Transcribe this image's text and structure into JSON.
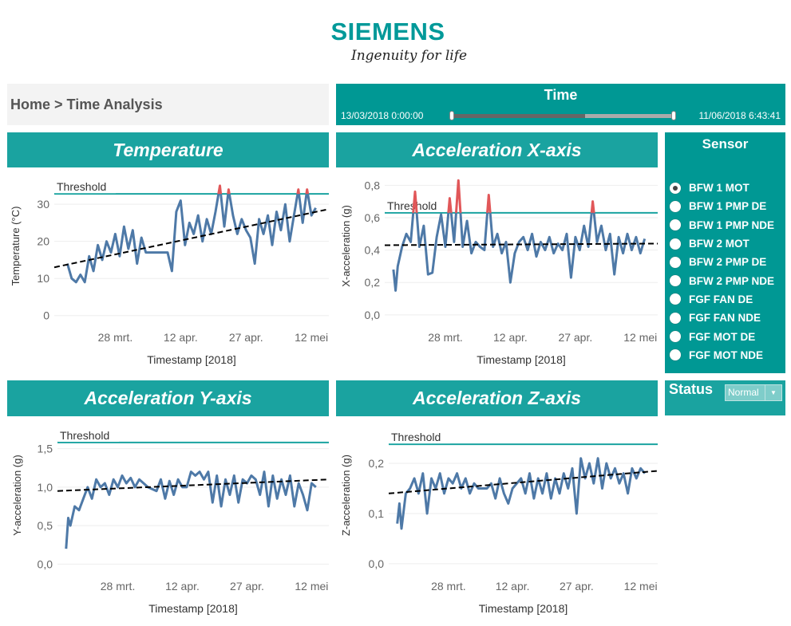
{
  "logo": {
    "brand": "SIEMENS",
    "tagline": "Ingenuity for life"
  },
  "breadcrumb": "Home > Time Analysis",
  "time_filter": {
    "title": "Time",
    "start": "13/03/2018 0:00:00",
    "end": "11/06/2018 6:43:41",
    "selected_fraction_start": 0.0,
    "selected_fraction_end": 0.6
  },
  "sensor": {
    "title": "Sensor",
    "options": [
      "BFW 1 MOT",
      "BFW 1 PMP DE",
      "BFW 1 PMP NDE",
      "BFW 2 MOT",
      "BFW 2 PMP DE",
      "BFW 2 PMP NDE",
      "FGF FAN DE",
      "FGF FAN NDE",
      "FGF MOT DE",
      "FGF MOT NDE"
    ],
    "selected": "BFW 1 MOT"
  },
  "status": {
    "label": "Status",
    "value": "Normal"
  },
  "colors": {
    "header": "#1aa3a0",
    "panel": "#009894",
    "line": "#4e79a7",
    "above_threshold": "#e15759",
    "threshold": "#1aa3a0",
    "trend": "#000000"
  },
  "chart_data": [
    {
      "type": "line",
      "title": "Temperature",
      "xlabel": "Timestamp [2018]",
      "ylabel": "Temperature (°C)",
      "threshold_label": "Threshold",
      "threshold": 32.8,
      "xlim": [
        "2018-03-14",
        "2018-05-16"
      ],
      "ylim": [
        -2,
        39.5
      ],
      "yticks": [
        {
          "v": 0,
          "l": "0"
        },
        {
          "v": 10,
          "l": "10"
        },
        {
          "v": 20,
          "l": "20"
        },
        {
          "v": 30,
          "l": "30"
        }
      ],
      "xticks": [
        {
          "d": "2018-03-28",
          "l": "28 mrt."
        },
        {
          "d": "2018-04-12",
          "l": "12 apr."
        },
        {
          "d": "2018-04-27",
          "l": "27 apr."
        },
        {
          "d": "2018-05-12",
          "l": "12 mei"
        }
      ],
      "trend": [
        [
          "2018-03-14",
          13
        ],
        [
          "2018-05-16",
          28.7
        ]
      ],
      "series": [
        [
          "2018-03-17",
          14
        ],
        [
          "2018-03-18",
          10
        ],
        [
          "2018-03-19",
          9
        ],
        [
          "2018-03-20",
          11
        ],
        [
          "2018-03-21",
          9
        ],
        [
          "2018-03-22",
          16
        ],
        [
          "2018-03-23",
          12
        ],
        [
          "2018-03-24",
          19
        ],
        [
          "2018-03-25",
          15
        ],
        [
          "2018-03-26",
          20
        ],
        [
          "2018-03-27",
          17
        ],
        [
          "2018-03-28",
          22
        ],
        [
          "2018-03-29",
          16
        ],
        [
          "2018-03-30",
          24
        ],
        [
          "2018-03-31",
          18
        ],
        [
          "2018-04-01",
          23
        ],
        [
          "2018-04-02",
          14
        ],
        [
          "2018-04-03",
          21
        ],
        [
          "2018-04-04",
          17
        ],
        [
          "2018-04-05",
          17
        ],
        [
          "2018-04-09",
          17
        ],
        [
          "2018-04-10",
          12
        ],
        [
          "2018-04-11",
          28
        ],
        [
          "2018-04-12",
          31
        ],
        [
          "2018-04-13",
          19
        ],
        [
          "2018-04-14",
          25
        ],
        [
          "2018-04-15",
          22
        ],
        [
          "2018-04-16",
          27
        ],
        [
          "2018-04-17",
          20
        ],
        [
          "2018-04-18",
          26
        ],
        [
          "2018-04-19",
          22
        ],
        [
          "2018-04-20",
          28
        ],
        [
          "2018-04-21",
          35
        ],
        [
          "2018-04-22",
          24
        ],
        [
          "2018-04-23",
          34
        ],
        [
          "2018-04-24",
          27
        ],
        [
          "2018-04-25",
          22
        ],
        [
          "2018-04-26",
          26
        ],
        [
          "2018-04-27",
          23
        ],
        [
          "2018-04-28",
          21
        ],
        [
          "2018-04-29",
          14
        ],
        [
          "2018-04-30",
          26
        ],
        [
          "2018-05-01",
          22
        ],
        [
          "2018-05-02",
          27
        ],
        [
          "2018-05-03",
          19
        ],
        [
          "2018-05-04",
          28
        ],
        [
          "2018-05-05",
          23
        ],
        [
          "2018-05-06",
          30
        ],
        [
          "2018-05-07",
          20
        ],
        [
          "2018-05-08",
          27
        ],
        [
          "2018-05-09",
          34
        ],
        [
          "2018-05-10",
          25
        ],
        [
          "2018-05-11",
          34
        ],
        [
          "2018-05-12",
          27
        ],
        [
          "2018-05-13",
          29
        ]
      ]
    },
    {
      "type": "line",
      "title": "Acceleration X-axis",
      "xlabel": "Timestamp [2018]",
      "ylabel": "X-acceleration (g)",
      "threshold_label": "Threshold",
      "threshold": 0.63,
      "xlim": [
        "2018-03-14",
        "2018-05-16"
      ],
      "ylim": [
        -0.05,
        0.9
      ],
      "yticks": [
        {
          "v": 0,
          "l": "0,0"
        },
        {
          "v": 0.2,
          "l": "0,2"
        },
        {
          "v": 0.4,
          "l": "0,4"
        },
        {
          "v": 0.6,
          "l": "0,6"
        },
        {
          "v": 0.8,
          "l": "0,8"
        }
      ],
      "xticks": [
        {
          "d": "2018-03-28",
          "l": "28 mrt."
        },
        {
          "d": "2018-04-12",
          "l": "12 apr."
        },
        {
          "d": "2018-04-27",
          "l": "27 apr."
        },
        {
          "d": "2018-05-12",
          "l": "12 mei"
        }
      ],
      "trend": [
        [
          "2018-03-14",
          0.43
        ],
        [
          "2018-05-16",
          0.44
        ]
      ],
      "series": [
        [
          "2018-03-16",
          0.28
        ],
        [
          "2018-03-16T12:00",
          0.15
        ],
        [
          "2018-03-17",
          0.3
        ],
        [
          "2018-03-18",
          0.42
        ],
        [
          "2018-03-19",
          0.5
        ],
        [
          "2018-03-20",
          0.45
        ],
        [
          "2018-03-21",
          0.76
        ],
        [
          "2018-03-22",
          0.42
        ],
        [
          "2018-03-23",
          0.55
        ],
        [
          "2018-03-24",
          0.25
        ],
        [
          "2018-03-25",
          0.26
        ],
        [
          "2018-03-26",
          0.48
        ],
        [
          "2018-03-27",
          0.62
        ],
        [
          "2018-03-28",
          0.42
        ],
        [
          "2018-03-29",
          0.72
        ],
        [
          "2018-03-30",
          0.45
        ],
        [
          "2018-03-31",
          0.83
        ],
        [
          "2018-04-01",
          0.42
        ],
        [
          "2018-04-02",
          0.58
        ],
        [
          "2018-04-03",
          0.38
        ],
        [
          "2018-04-04",
          0.45
        ],
        [
          "2018-04-05",
          0.42
        ],
        [
          "2018-04-06",
          0.4
        ],
        [
          "2018-04-07",
          0.74
        ],
        [
          "2018-04-08",
          0.42
        ],
        [
          "2018-04-09",
          0.5
        ],
        [
          "2018-04-10",
          0.38
        ],
        [
          "2018-04-11",
          0.45
        ],
        [
          "2018-04-12",
          0.2
        ],
        [
          "2018-04-13",
          0.38
        ],
        [
          "2018-04-14",
          0.45
        ],
        [
          "2018-04-15",
          0.48
        ],
        [
          "2018-04-16",
          0.4
        ],
        [
          "2018-04-17",
          0.5
        ],
        [
          "2018-04-18",
          0.36
        ],
        [
          "2018-04-19",
          0.45
        ],
        [
          "2018-04-20",
          0.4
        ],
        [
          "2018-04-21",
          0.48
        ],
        [
          "2018-04-22",
          0.38
        ],
        [
          "2018-04-23",
          0.44
        ],
        [
          "2018-04-24",
          0.4
        ],
        [
          "2018-04-25",
          0.5
        ],
        [
          "2018-04-26",
          0.23
        ],
        [
          "2018-04-27",
          0.48
        ],
        [
          "2018-04-28",
          0.4
        ],
        [
          "2018-04-29",
          0.55
        ],
        [
          "2018-04-30",
          0.42
        ],
        [
          "2018-05-01",
          0.7
        ],
        [
          "2018-05-02",
          0.45
        ],
        [
          "2018-05-03",
          0.55
        ],
        [
          "2018-05-04",
          0.4
        ],
        [
          "2018-05-05",
          0.5
        ],
        [
          "2018-05-06",
          0.25
        ],
        [
          "2018-05-07",
          0.48
        ],
        [
          "2018-05-08",
          0.38
        ],
        [
          "2018-05-09",
          0.5
        ],
        [
          "2018-05-10",
          0.4
        ],
        [
          "2018-05-11",
          0.48
        ],
        [
          "2018-05-12",
          0.38
        ],
        [
          "2018-05-13",
          0.47
        ]
      ]
    },
    {
      "type": "line",
      "title": "Acceleration Y-axis",
      "xlabel": "Timestamp [2018]",
      "ylabel": "Y-acceleration (g)",
      "threshold_label": "Threshold",
      "threshold": 1.58,
      "xlim": [
        "2018-03-14",
        "2018-05-16"
      ],
      "ylim": [
        -0.1,
        1.89
      ],
      "yticks": [
        {
          "v": 0,
          "l": "0,0"
        },
        {
          "v": 0.5,
          "l": "0,5"
        },
        {
          "v": 1,
          "l": "1,0"
        },
        {
          "v": 1.5,
          "l": "1,5"
        }
      ],
      "xticks": [
        {
          "d": "2018-03-28",
          "l": "28 mrt."
        },
        {
          "d": "2018-04-12",
          "l": "12 apr."
        },
        {
          "d": "2018-04-27",
          "l": "27 apr."
        },
        {
          "d": "2018-05-12",
          "l": "12 mei"
        }
      ],
      "trend": [
        [
          "2018-03-14",
          0.95
        ],
        [
          "2018-05-16",
          1.1
        ]
      ],
      "series": [
        [
          "2018-03-16",
          0.2
        ],
        [
          "2018-03-16T12:00",
          0.6
        ],
        [
          "2018-03-17",
          0.5
        ],
        [
          "2018-03-18",
          0.75
        ],
        [
          "2018-03-19",
          0.7
        ],
        [
          "2018-03-20",
          0.85
        ],
        [
          "2018-03-21",
          1.0
        ],
        [
          "2018-03-22",
          0.85
        ],
        [
          "2018-03-23",
          1.1
        ],
        [
          "2018-03-24",
          1.0
        ],
        [
          "2018-03-25",
          1.05
        ],
        [
          "2018-03-26",
          0.9
        ],
        [
          "2018-03-27",
          1.1
        ],
        [
          "2018-03-28",
          1.0
        ],
        [
          "2018-03-29",
          1.15
        ],
        [
          "2018-03-30",
          1.05
        ],
        [
          "2018-03-31",
          1.12
        ],
        [
          "2018-04-01",
          1.0
        ],
        [
          "2018-04-02",
          1.1
        ],
        [
          "2018-04-03",
          1.05
        ],
        [
          "2018-04-04",
          1.0
        ],
        [
          "2018-04-06",
          0.95
        ],
        [
          "2018-04-07",
          1.1
        ],
        [
          "2018-04-08",
          0.85
        ],
        [
          "2018-04-09",
          1.08
        ],
        [
          "2018-04-10",
          0.9
        ],
        [
          "2018-04-11",
          1.1
        ],
        [
          "2018-04-12",
          1.0
        ],
        [
          "2018-04-13",
          1.0
        ],
        [
          "2018-04-14",
          1.2
        ],
        [
          "2018-04-15",
          1.15
        ],
        [
          "2018-04-16",
          1.2
        ],
        [
          "2018-04-17",
          1.1
        ],
        [
          "2018-04-18",
          1.2
        ],
        [
          "2018-04-19",
          0.8
        ],
        [
          "2018-04-20",
          1.15
        ],
        [
          "2018-04-21",
          0.75
        ],
        [
          "2018-04-22",
          1.1
        ],
        [
          "2018-04-23",
          0.9
        ],
        [
          "2018-04-24",
          1.15
        ],
        [
          "2018-04-25",
          0.8
        ],
        [
          "2018-04-26",
          1.1
        ],
        [
          "2018-04-27",
          1.05
        ],
        [
          "2018-04-28",
          1.15
        ],
        [
          "2018-04-29",
          1.1
        ],
        [
          "2018-04-30",
          0.9
        ],
        [
          "2018-05-01",
          1.2
        ],
        [
          "2018-05-02",
          0.75
        ],
        [
          "2018-05-03",
          1.15
        ],
        [
          "2018-05-04",
          0.85
        ],
        [
          "2018-05-05",
          1.1
        ],
        [
          "2018-05-06",
          0.9
        ],
        [
          "2018-05-07",
          1.15
        ],
        [
          "2018-05-08",
          0.75
        ],
        [
          "2018-05-09",
          1.05
        ],
        [
          "2018-05-10",
          0.9
        ],
        [
          "2018-05-11",
          0.7
        ],
        [
          "2018-05-12",
          1.05
        ],
        [
          "2018-05-13",
          1.0
        ]
      ]
    },
    {
      "type": "line",
      "title": "Acceleration Z-axis",
      "xlabel": "Timestamp [2018]",
      "ylabel": "Z-acceleration (g)",
      "threshold_label": "Threshold",
      "threshold": 0.238,
      "xlim": [
        "2018-03-14",
        "2018-05-16"
      ],
      "ylim": [
        -0.016,
        0.289
      ],
      "yticks": [
        {
          "v": 0,
          "l": "0,0"
        },
        {
          "v": 0.1,
          "l": "0,1"
        },
        {
          "v": 0.2,
          "l": "0,2"
        }
      ],
      "xticks": [
        {
          "d": "2018-03-28",
          "l": "28 mrt."
        },
        {
          "d": "2018-04-12",
          "l": "12 apr."
        },
        {
          "d": "2018-04-27",
          "l": "27 apr."
        },
        {
          "d": "2018-05-12",
          "l": "12 mei"
        }
      ],
      "trend": [
        [
          "2018-03-14",
          0.14
        ],
        [
          "2018-05-16",
          0.185
        ]
      ],
      "series": [
        [
          "2018-03-16",
          0.08
        ],
        [
          "2018-03-16T12:00",
          0.12
        ],
        [
          "2018-03-17",
          0.07
        ],
        [
          "2018-03-18",
          0.14
        ],
        [
          "2018-03-19",
          0.15
        ],
        [
          "2018-03-20",
          0.17
        ],
        [
          "2018-03-21",
          0.14
        ],
        [
          "2018-03-22",
          0.18
        ],
        [
          "2018-03-23",
          0.1
        ],
        [
          "2018-03-24",
          0.17
        ],
        [
          "2018-03-25",
          0.15
        ],
        [
          "2018-03-26",
          0.18
        ],
        [
          "2018-03-27",
          0.14
        ],
        [
          "2018-03-28",
          0.17
        ],
        [
          "2018-03-29",
          0.16
        ],
        [
          "2018-03-30",
          0.18
        ],
        [
          "2018-03-31",
          0.15
        ],
        [
          "2018-04-01",
          0.17
        ],
        [
          "2018-04-02",
          0.14
        ],
        [
          "2018-04-03",
          0.16
        ],
        [
          "2018-04-04",
          0.15
        ],
        [
          "2018-04-06",
          0.15
        ],
        [
          "2018-04-07",
          0.16
        ],
        [
          "2018-04-08",
          0.13
        ],
        [
          "2018-04-09",
          0.17
        ],
        [
          "2018-04-10",
          0.14
        ],
        [
          "2018-04-11",
          0.12
        ],
        [
          "2018-04-12",
          0.15
        ],
        [
          "2018-04-13",
          0.16
        ],
        [
          "2018-04-14",
          0.17
        ],
        [
          "2018-04-15",
          0.14
        ],
        [
          "2018-04-16",
          0.18
        ],
        [
          "2018-04-17",
          0.13
        ],
        [
          "2018-04-18",
          0.17
        ],
        [
          "2018-04-19",
          0.14
        ],
        [
          "2018-04-20",
          0.18
        ],
        [
          "2018-04-21",
          0.13
        ],
        [
          "2018-04-22",
          0.17
        ],
        [
          "2018-04-23",
          0.14
        ],
        [
          "2018-04-24",
          0.18
        ],
        [
          "2018-04-25",
          0.15
        ],
        [
          "2018-04-26",
          0.19
        ],
        [
          "2018-04-27",
          0.1
        ],
        [
          "2018-04-28",
          0.21
        ],
        [
          "2018-04-29",
          0.17
        ],
        [
          "2018-04-30",
          0.2
        ],
        [
          "2018-05-01",
          0.16
        ],
        [
          "2018-05-02",
          0.21
        ],
        [
          "2018-05-03",
          0.15
        ],
        [
          "2018-05-04",
          0.2
        ],
        [
          "2018-05-05",
          0.17
        ],
        [
          "2018-05-06",
          0.19
        ],
        [
          "2018-05-07",
          0.16
        ],
        [
          "2018-05-08",
          0.18
        ],
        [
          "2018-05-09",
          0.14
        ],
        [
          "2018-05-10",
          0.19
        ],
        [
          "2018-05-11",
          0.17
        ],
        [
          "2018-05-12",
          0.19
        ],
        [
          "2018-05-13",
          0.18
        ]
      ]
    }
  ]
}
